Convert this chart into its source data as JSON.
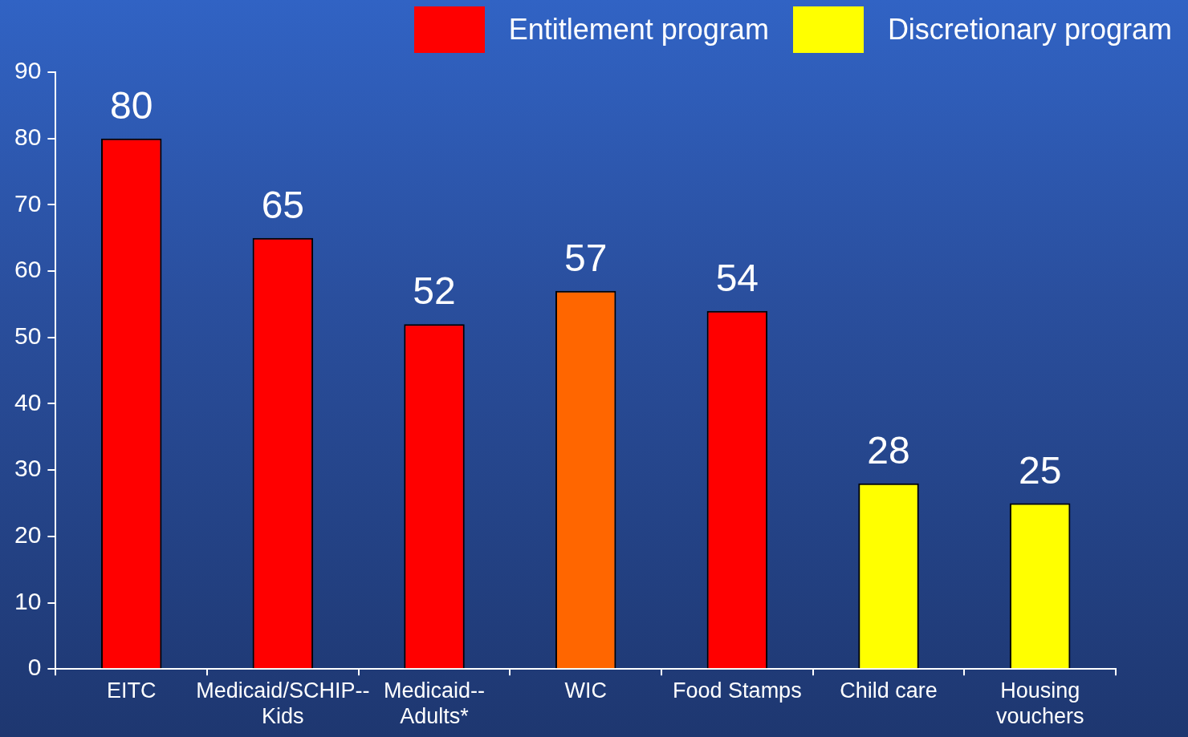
{
  "chart_data": {
    "type": "bar",
    "categories": [
      "EITC",
      "Medicaid/SCHIP--Kids",
      "Medicaid--Adults*",
      "WIC",
      "Food Stamps",
      "Child care",
      "Housing vouchers"
    ],
    "series": [
      {
        "name": "Entitlement program",
        "color": "#ff0000",
        "values": [
          80,
          65,
          52,
          null,
          54,
          null,
          null
        ]
      },
      {
        "color": "#ff6600",
        "values": [
          null,
          null,
          null,
          57,
          null,
          null,
          null
        ]
      },
      {
        "name": "Discretionary program",
        "color": "#ffff00",
        "values": [
          null,
          null,
          null,
          null,
          null,
          28,
          25
        ]
      }
    ],
    "ylim": [
      0,
      90
    ],
    "yticks": [
      0,
      10,
      20,
      30,
      40,
      50,
      60,
      70,
      80,
      90
    ],
    "grid": false,
    "legend": "top right",
    "data_labels": true
  }
}
